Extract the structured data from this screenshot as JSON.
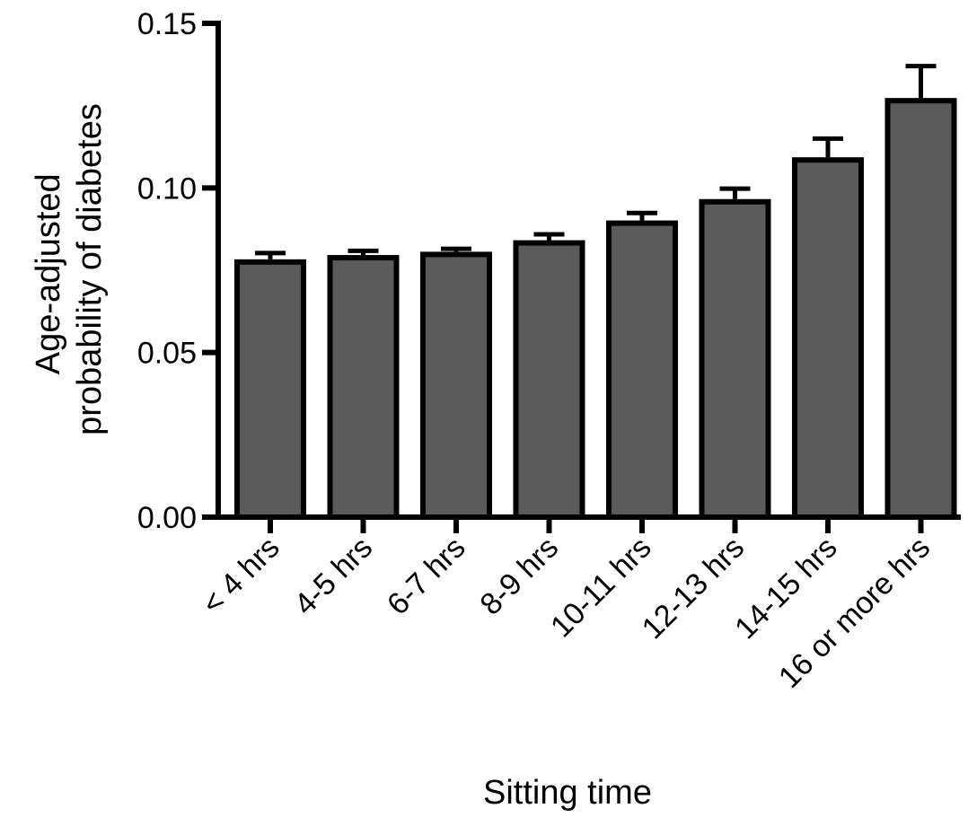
{
  "chart_data": {
    "type": "bar",
    "title": "",
    "xlabel": "Sitting time",
    "ylabel_lines": [
      "Age-adjusted",
      "probability of diabetes"
    ],
    "ylim": [
      0,
      0.15
    ],
    "yticks": [
      "0.00",
      "0.05",
      "0.10",
      "0.15"
    ],
    "ytick_values": [
      0,
      0.05,
      0.1,
      0.15
    ],
    "categories": [
      "< 4 hrs",
      "4-5 hrs",
      "6-7 hrs",
      "8-9 hrs",
      "10-11 hrs",
      "12-13 hrs",
      "14-15 hrs",
      "16 or more hrs"
    ],
    "values": [
      0.0775,
      0.0788,
      0.0798,
      0.0833,
      0.0893,
      0.0958,
      0.1085,
      0.1265
    ],
    "error_upper": [
      0.0802,
      0.0809,
      0.0815,
      0.0859,
      0.0924,
      0.0998,
      0.115,
      0.137
    ],
    "grid": false,
    "legend": "none",
    "colors": {
      "bar_fill": "#5b5b5b",
      "bar_stroke": "#000000",
      "axis": "#000000"
    }
  }
}
